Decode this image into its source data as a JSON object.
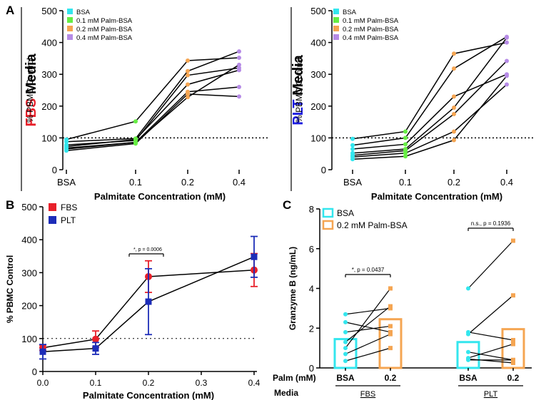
{
  "colors": {
    "bsa": "#33e6ee",
    "palm01": "#66ee44",
    "palm02": "#f5a552",
    "palm04": "#b68be6",
    "fbs": "#e8202a",
    "plt": "#1c2cb8",
    "fbs_title": "#e8202a",
    "plt_title": "#1c1ce0"
  },
  "chart_data": [
    {
      "id": "A_left",
      "type": "line",
      "panel_label": "A",
      "media_label": {
        "bold": "FBS",
        "rest": " Media",
        "color": "fbs_title"
      },
      "ylabel": "% PBMC Control",
      "xlabel": "Palmitate Concentration (mM)",
      "categories": [
        "BSA",
        "0.1",
        "0.2",
        "0.4"
      ],
      "ylim": [
        0,
        500
      ],
      "yticks": [
        0,
        100,
        200,
        300,
        400,
        500
      ],
      "reference_line": 100,
      "legend": [
        "BSA",
        "0.1 mM Palm-BSA",
        "0.2 mM Palm-BSA",
        "0.4 mM Palm-BSA"
      ],
      "subjects": [
        [
          95,
          152,
          343,
          352
        ],
        [
          88,
          98,
          310,
          372
        ],
        [
          78,
          92,
          297,
          320
        ],
        [
          73,
          95,
          268,
          313
        ],
        [
          68,
          86,
          245,
          260
        ],
        [
          65,
          86,
          228,
          330
        ],
        [
          60,
          82,
          238,
          230
        ]
      ]
    },
    {
      "id": "A_right",
      "type": "line",
      "panel_label": "",
      "media_label": {
        "bold": "PLT",
        "rest": " Media",
        "color": "plt_title"
      },
      "ylabel": "% PBMC Control",
      "xlabel": "Palmitate Concentration (mM)",
      "categories": [
        "BSA",
        "0.1",
        "0.2",
        "0.4"
      ],
      "ylim": [
        0,
        500
      ],
      "yticks": [
        0,
        100,
        200,
        300,
        400,
        500
      ],
      "reference_line": 100,
      "legend": [
        "BSA",
        "0.1 mM Palm-BSA",
        "0.2 mM Palm-BSA",
        "0.4 mM Palm-BSA"
      ],
      "subjects": [
        [
          97,
          120,
          365,
          400
        ],
        [
          77,
          100,
          318,
          418
        ],
        [
          65,
          80,
          230,
          300
        ],
        [
          52,
          65,
          195,
          415
        ],
        [
          45,
          60,
          175,
          342
        ],
        [
          40,
          52,
          120,
          268
        ],
        [
          33,
          42,
          93,
          295
        ]
      ]
    },
    {
      "id": "B",
      "type": "line",
      "panel_label": "B",
      "ylabel": "% PBMC Control",
      "xlabel": "Palmitate Concentration (mM)",
      "xlim": [
        0,
        0.4
      ],
      "xticks": [
        "0.0",
        "0.1",
        "0.2",
        "0.3",
        "0.4"
      ],
      "ylim": [
        0,
        500
      ],
      "yticks": [
        0,
        100,
        200,
        300,
        400,
        500
      ],
      "reference_line": 100,
      "legend": [
        "FBS",
        "PLT"
      ],
      "annotation": "*, p = 0.0006",
      "series": [
        {
          "name": "FBS",
          "color": "fbs",
          "marker": "circle",
          "x": [
            0,
            0.1,
            0.2,
            0.4
          ],
          "y": [
            72,
            98,
            288,
            308
          ],
          "err": [
            8,
            25,
            48,
            50
          ]
        },
        {
          "name": "PLT",
          "color": "plt",
          "marker": "square",
          "x": [
            0,
            0.1,
            0.2,
            0.4
          ],
          "y": [
            60,
            70,
            212,
            348
          ],
          "err": [
            22,
            18,
            100,
            62
          ]
        }
      ]
    },
    {
      "id": "C",
      "type": "bar",
      "panel_label": "C",
      "ylabel": "Granzyme B (ng/mL)",
      "ylim": [
        0,
        8
      ],
      "yticks": [
        0,
        2,
        4,
        6,
        8
      ],
      "legend": [
        "BSA",
        "0.2 mM Palm-BSA"
      ],
      "row_labels": {
        "palm": "Palm (mM)",
        "media": "Media"
      },
      "groups": [
        {
          "media": "FBS",
          "media_color": "fbs_title",
          "annotation": "*, p = 0.0437",
          "categories": [
            "BSA",
            "0.2"
          ],
          "bar_means": [
            1.45,
            2.45
          ],
          "pairs": [
            [
              2.7,
              3.0
            ],
            [
              2.3,
              1.8
            ],
            [
              1.8,
              2.1
            ],
            [
              1.3,
              3.1
            ],
            [
              1.0,
              4.0
            ],
            [
              0.7,
              1.7
            ],
            [
              0.35,
              1.0
            ]
          ]
        },
        {
          "media": "PLT",
          "media_color": "plt_title",
          "annotation": "n.s., p = 0.1936",
          "categories": [
            "BSA",
            "0.2"
          ],
          "bar_means": [
            1.3,
            1.95
          ],
          "pairs": [
            [
              4.0,
              6.4
            ],
            [
              1.8,
              1.4
            ],
            [
              1.7,
              3.65
            ],
            [
              0.8,
              0.4
            ],
            [
              0.5,
              1.2
            ],
            [
              0.45,
              0.25
            ],
            [
              0.4,
              0.4
            ]
          ]
        }
      ]
    }
  ]
}
